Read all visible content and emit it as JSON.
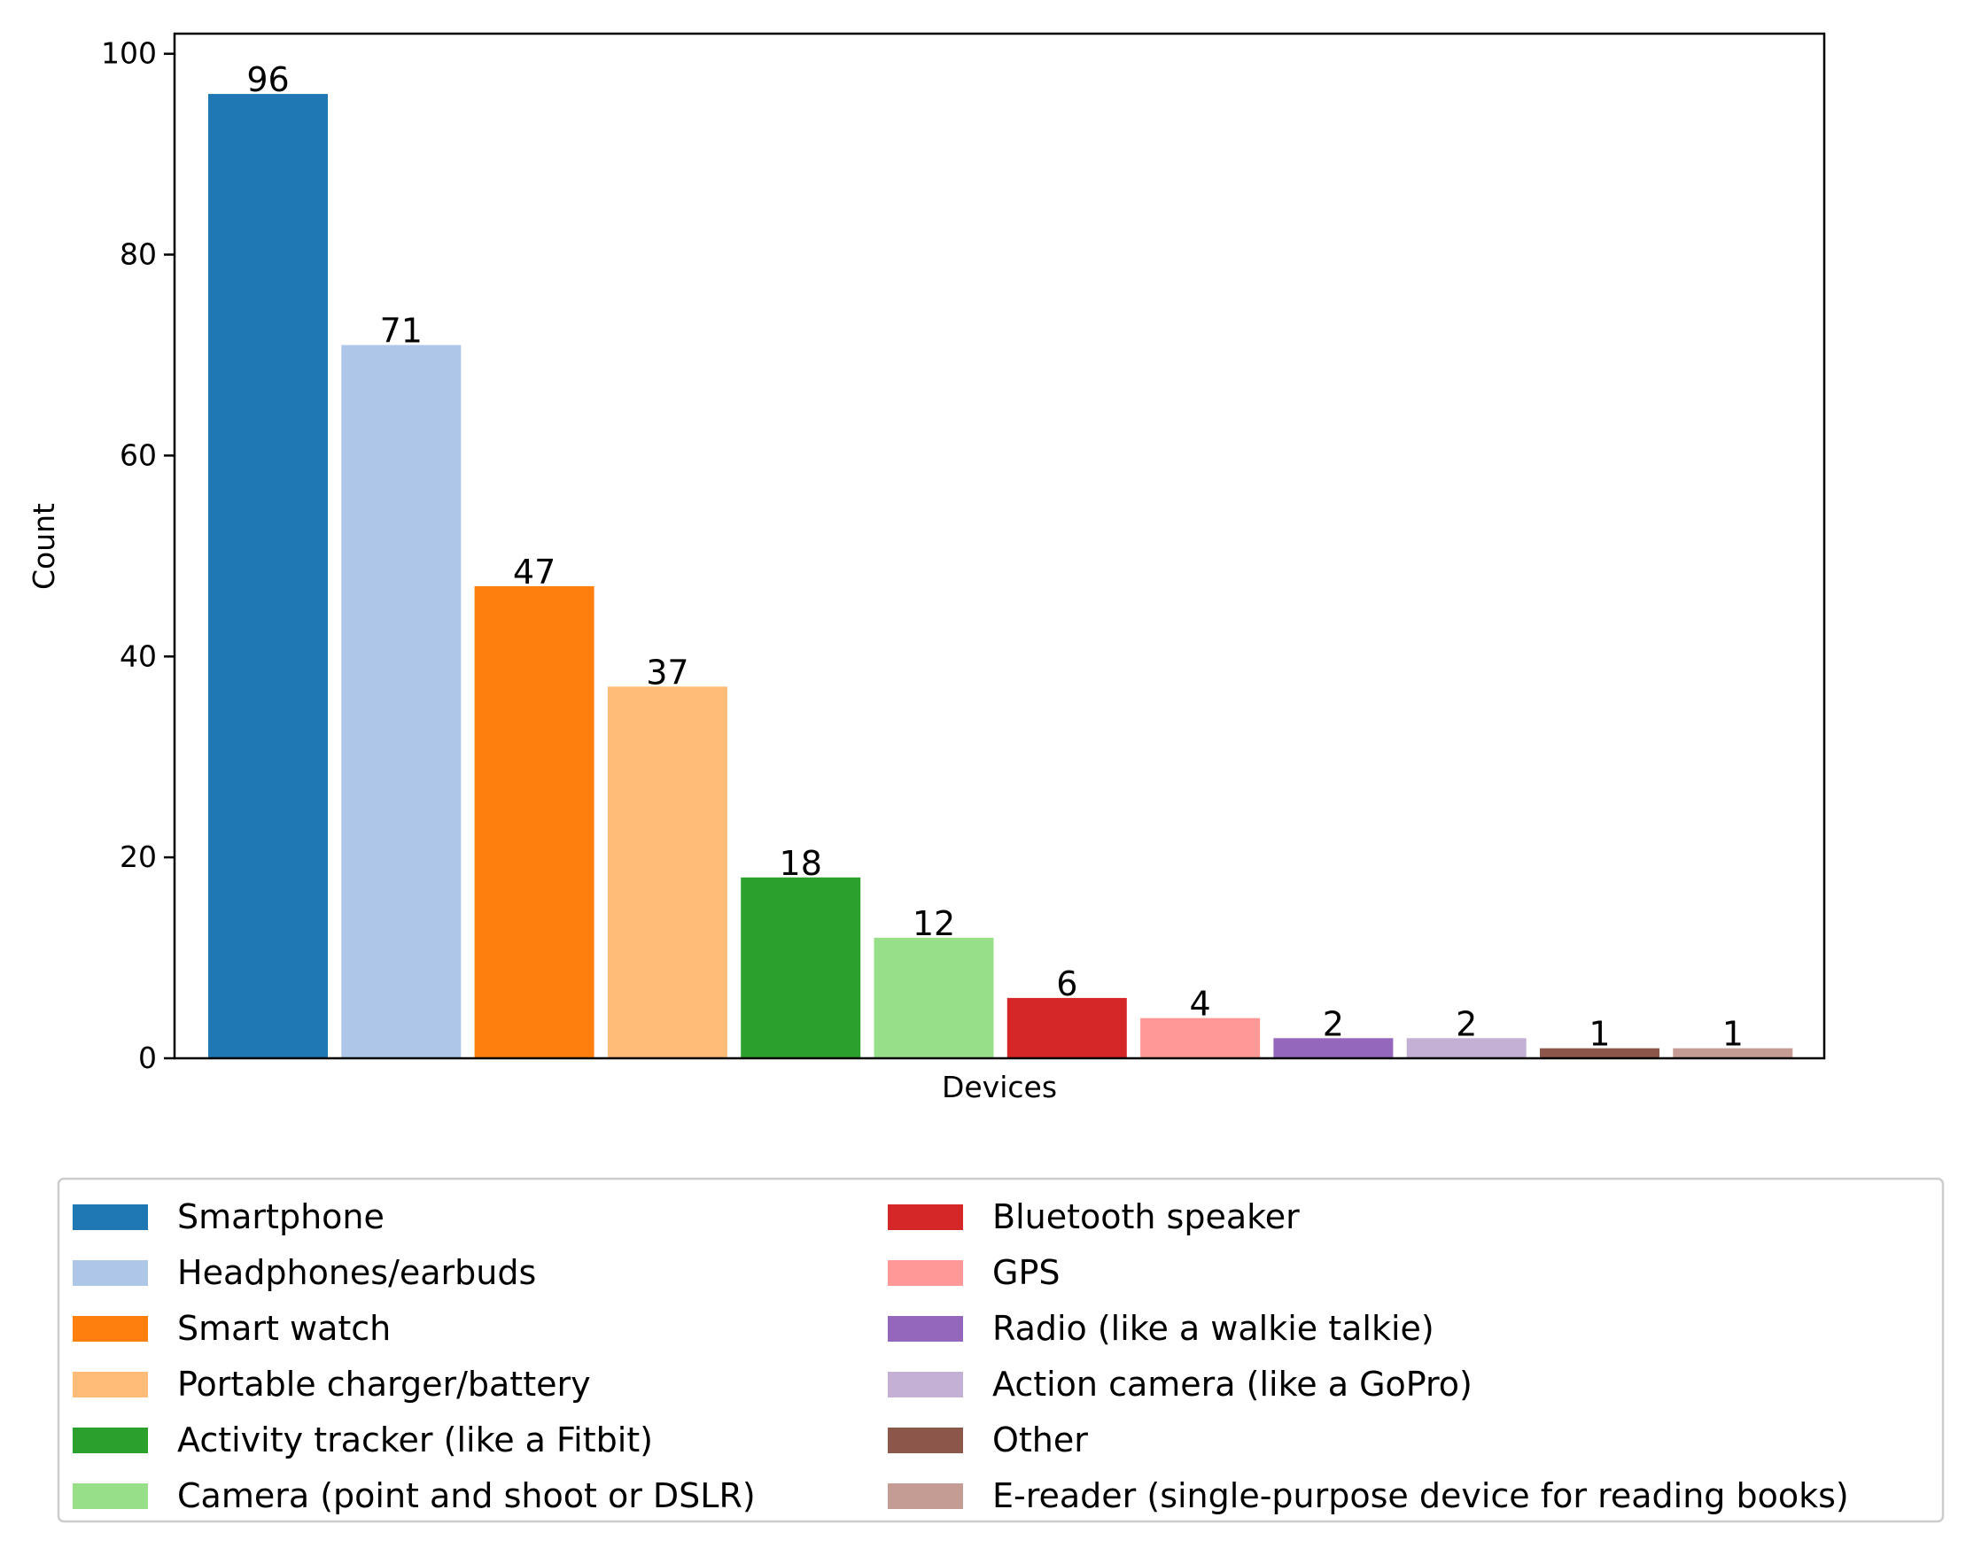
{
  "chart_data": {
    "type": "bar",
    "title": "",
    "xlabel": "Devices",
    "ylabel": "Count",
    "ylim": [
      0,
      102
    ],
    "yticks": [
      0,
      20,
      40,
      60,
      80,
      100
    ],
    "grid": false,
    "legend_position": "bottom",
    "legend_columns": 2,
    "categories": [
      "Smartphone",
      "Headphones/earbuds",
      "Smart watch",
      "Portable charger/battery",
      "Activity tracker (like a Fitbit)",
      "Camera (point and shoot or DSLR)",
      "Bluetooth speaker",
      "GPS",
      "Radio (like a walkie talkie)",
      "Action camera (like a GoPro)",
      "Other",
      "E-reader (single-purpose device for reading books)"
    ],
    "values": [
      96,
      71,
      47,
      37,
      18,
      12,
      6,
      4,
      2,
      2,
      1,
      1
    ],
    "colors": [
      "#1f77b4",
      "#aec7e8",
      "#ff7f0e",
      "#ffbb78",
      "#2ca02c",
      "#98df8a",
      "#d62728",
      "#ff9896",
      "#9467bd",
      "#c5b0d5",
      "#8c564b",
      "#c49c94"
    ]
  }
}
